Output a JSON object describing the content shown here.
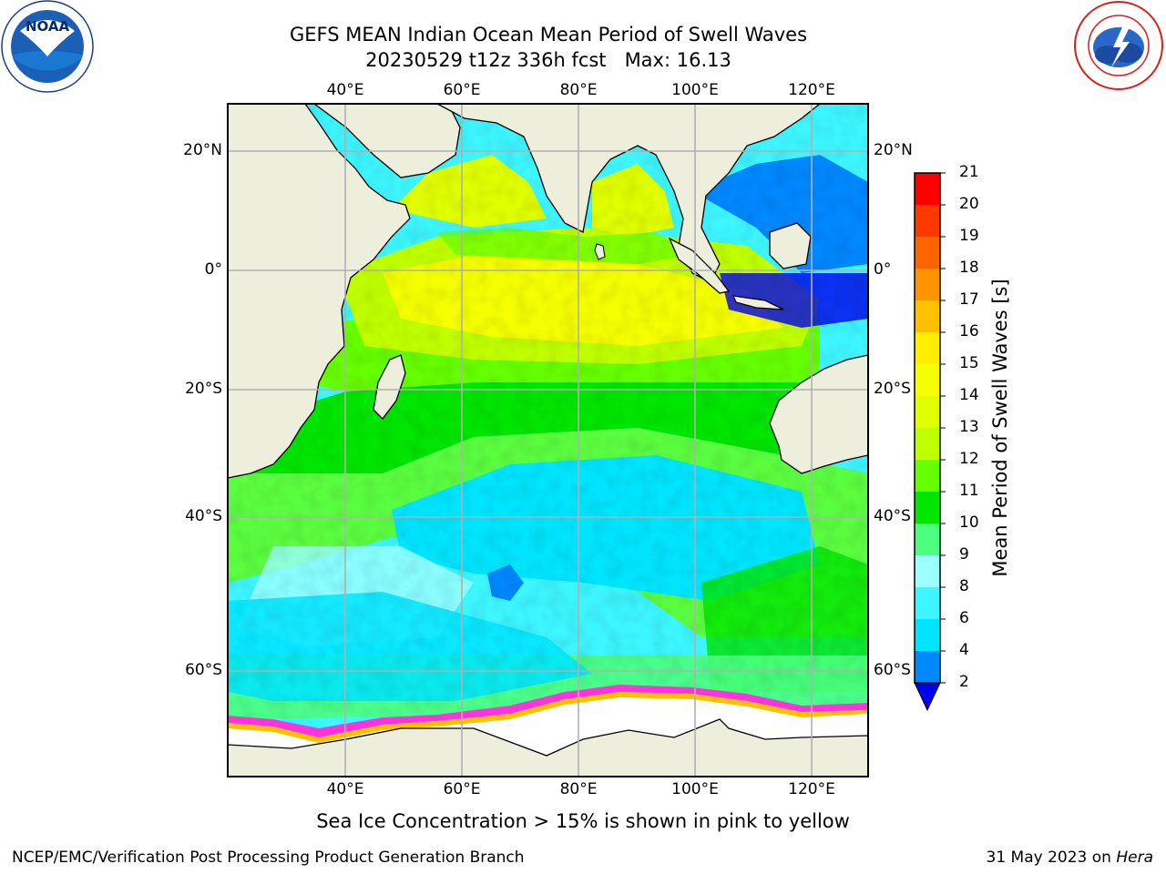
{
  "header": {
    "title_line1": "GEFS MEAN Indian Ocean Mean Period of Swell Waves",
    "title_line2": "20230529 t12z 336h fcst   Max: 16.13"
  },
  "logos": {
    "noaa": {
      "text": "NOAA",
      "ring_text": "NATIONAL OCEANIC AND ATMOSPHERIC ADMINISTRATION · U.S. DEPARTMENT OF COMMERCE",
      "icon": "noaa-logo-icon"
    },
    "nws": {
      "ring_text": "NATIONAL WEATHER SERVICE",
      "icon": "nws-logo-icon"
    }
  },
  "map": {
    "lon_labels": [
      "40°E",
      "60°E",
      "80°E",
      "100°E",
      "120°E"
    ],
    "lat_labels": [
      "20°N",
      "0°",
      "20°S",
      "40°S",
      "60°S"
    ],
    "land_color": "#eeeedd",
    "grid_color": "#b0b0b0"
  },
  "colorbar": {
    "label": "Mean Period of Swell Waves [s]",
    "ticks": [
      "2",
      "4",
      "6",
      "8",
      "9",
      "10",
      "11",
      "12",
      "13",
      "14",
      "15",
      "16",
      "17",
      "18",
      "19",
      "20",
      "21"
    ],
    "bins": [
      {
        "lo": 2,
        "hi": 4,
        "color": "#0088ff"
      },
      {
        "lo": 4,
        "hi": 6,
        "color": "#00e5ff"
      },
      {
        "lo": 6,
        "hi": 8,
        "color": "#3df6ff"
      },
      {
        "lo": 8,
        "hi": 9,
        "color": "#9cffff"
      },
      {
        "lo": 9,
        "hi": 10,
        "color": "#4dff80"
      },
      {
        "lo": 10,
        "hi": 11,
        "color": "#00e600"
      },
      {
        "lo": 11,
        "hi": 12,
        "color": "#66ff00"
      },
      {
        "lo": 12,
        "hi": 13,
        "color": "#c0ff00"
      },
      {
        "lo": 13,
        "hi": 14,
        "color": "#e0ff00"
      },
      {
        "lo": 14,
        "hi": 15,
        "color": "#f5ff00"
      },
      {
        "lo": 15,
        "hi": 16,
        "color": "#ffee00"
      },
      {
        "lo": 16,
        "hi": 17,
        "color": "#ffc000"
      },
      {
        "lo": 17,
        "hi": 18,
        "color": "#ff9400"
      },
      {
        "lo": 18,
        "hi": 19,
        "color": "#ff6400"
      },
      {
        "lo": 19,
        "hi": 20,
        "color": "#ff3800"
      },
      {
        "lo": 20,
        "hi": 21,
        "color": "#ff0000"
      }
    ],
    "extend_color": "#0000ee"
  },
  "annotation": "Sea Ice Concentration > 15% is shown in pink to yellow",
  "footer": {
    "left": "NCEP/EMC/Verification Post Processing Product Generation Branch",
    "right_date": "31 May 2023 on ",
    "right_machine": "Hera"
  }
}
